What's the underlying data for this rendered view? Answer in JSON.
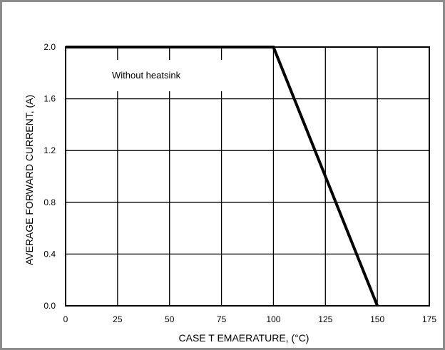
{
  "chart_data": {
    "type": "line",
    "title": "",
    "xlabel": "CASE T EMAERATURE, (°C)",
    "ylabel": "AVERAGE FORWARD CURRENT, (A)",
    "xlim": [
      0,
      175
    ],
    "ylim": [
      0,
      2.0
    ],
    "x_ticks": [
      0,
      25,
      50,
      75,
      100,
      125,
      150,
      175
    ],
    "x_tick_labels": [
      "0",
      "25",
      "50",
      "75",
      "100",
      "125",
      "150",
      "175"
    ],
    "y_ticks": [
      0,
      0.4,
      0.8,
      1.2,
      1.6,
      2.0
    ],
    "y_tick_labels": [
      "0.0",
      "0.4",
      "0.8",
      "1.2",
      "1.6",
      "2.0"
    ],
    "grid": true,
    "legend": "none",
    "annotations": [
      {
        "text": "Without heatsink"
      }
    ],
    "series": [
      {
        "x": [
          0,
          100,
          150
        ],
        "y": [
          2.0,
          2.0,
          0.0
        ]
      }
    ]
  }
}
